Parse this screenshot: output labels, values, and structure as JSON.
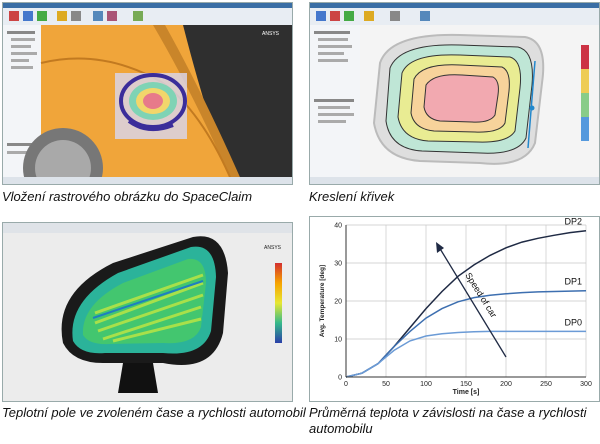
{
  "captions": {
    "top_left": "Vložení rastrového obrázku do SpaceClaim",
    "top_right": "Kreslení křivek",
    "bottom_left": "Teplotní pole ve zvoleném čase a rychlosti automobil",
    "bottom_right": "Průměrná teplota v závislosti na čase a rychlosti automobilu"
  },
  "logos": {
    "ansys": "ANSYS"
  },
  "chart_data": {
    "type": "line",
    "xlabel": "Time [s]",
    "ylabel": "Avg. Temperature [deg]",
    "xlim": [
      0,
      300
    ],
    "ylim": [
      0,
      40
    ],
    "xticks": [
      0,
      50,
      100,
      150,
      200,
      250,
      300
    ],
    "yticks": [
      0,
      10,
      20,
      30,
      40
    ],
    "annotation": "Speed of car",
    "series": [
      {
        "name": "DP2",
        "color": "#1f2a44",
        "x": [
          0,
          20,
          40,
          60,
          80,
          100,
          120,
          140,
          160,
          180,
          200,
          220,
          240,
          260,
          280,
          300
        ],
        "y": [
          0,
          1,
          3.5,
          8,
          13,
          18,
          22.5,
          26.5,
          29.5,
          32,
          34,
          35.5,
          36.5,
          37.3,
          38,
          38.5
        ]
      },
      {
        "name": "DP1",
        "color": "#3d6fb0",
        "x": [
          0,
          20,
          40,
          60,
          80,
          100,
          120,
          140,
          160,
          180,
          200,
          220,
          240,
          260,
          280,
          300
        ],
        "y": [
          0,
          1,
          3.5,
          8,
          12,
          15.5,
          18,
          19.8,
          20.9,
          21.5,
          21.9,
          22.2,
          22.4,
          22.5,
          22.6,
          22.7
        ]
      },
      {
        "name": "DP0",
        "color": "#6b9bd6",
        "x": [
          0,
          20,
          40,
          60,
          80,
          100,
          120,
          140,
          160,
          180,
          200,
          220,
          240,
          260,
          280,
          300
        ],
        "y": [
          0,
          1,
          3.5,
          7,
          9.5,
          10.8,
          11.4,
          11.7,
          11.9,
          12,
          12,
          12,
          12,
          12,
          12,
          12
        ]
      }
    ]
  }
}
